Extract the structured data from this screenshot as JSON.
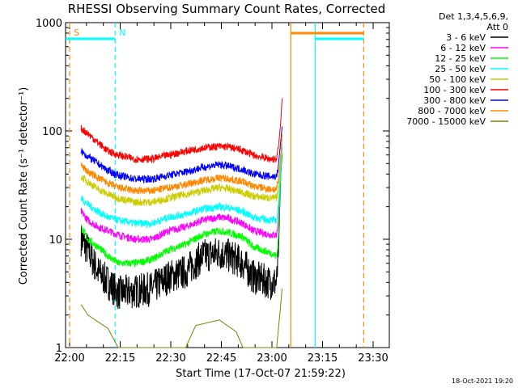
{
  "chart_data": {
    "type": "line",
    "title": "RHESSI Observing Summary Count Rates, Corrected",
    "xlabel": "Start Time (17-Oct-07 21:59:22)",
    "ylabel": "Corrected Count Rate (s⁻¹ detector⁻¹)",
    "yscale": "log",
    "ylim": [
      1,
      1000
    ],
    "xlim_minutes": [
      -0.6,
      95.4
    ],
    "x_tick_labels": [
      "22:00",
      "22:15",
      "22:30",
      "22:45",
      "23:00",
      "23:15",
      "23:30"
    ],
    "y_tick_labels": [
      "1",
      "10",
      "100",
      "1000"
    ],
    "legend_header": [
      "Det 1,3,4,5,6,9,",
      "Att 0"
    ],
    "footer": "18-Oct-2021 19:20",
    "series": [
      {
        "name": "3 - 6 keV",
        "color": "#000000",
        "points": [
          [
            4,
            10
          ],
          [
            6,
            8
          ],
          [
            9,
            5
          ],
          [
            12,
            4
          ],
          [
            15,
            3.2
          ],
          [
            20,
            3.3
          ],
          [
            25,
            3.5
          ],
          [
            30,
            4.5
          ],
          [
            35,
            5
          ],
          [
            40,
            7
          ],
          [
            45,
            7.5
          ],
          [
            48,
            7
          ],
          [
            52,
            6
          ],
          [
            55,
            4.5
          ],
          [
            60,
            4
          ],
          [
            62,
            4
          ],
          [
            62.5,
            7
          ],
          [
            63.2,
            40
          ],
          [
            63.6,
            60
          ]
        ]
      },
      {
        "name": "6 - 12 keV",
        "color": "#ff00ff",
        "points": [
          [
            4,
            18
          ],
          [
            6,
            15
          ],
          [
            9,
            13
          ],
          [
            12,
            12
          ],
          [
            15,
            11
          ],
          [
            20,
            10
          ],
          [
            25,
            10
          ],
          [
            30,
            12
          ],
          [
            35,
            13
          ],
          [
            40,
            15
          ],
          [
            45,
            16
          ],
          [
            48,
            15.5
          ],
          [
            52,
            14
          ],
          [
            55,
            12
          ],
          [
            60,
            11
          ],
          [
            62,
            11
          ],
          [
            62.5,
            15
          ],
          [
            63.2,
            45
          ],
          [
            63.6,
            70
          ]
        ]
      },
      {
        "name": "12 - 25 keV",
        "color": "#00ff00",
        "points": [
          [
            4,
            13
          ],
          [
            6,
            10
          ],
          [
            9,
            8.5
          ],
          [
            12,
            7
          ],
          [
            15,
            6
          ],
          [
            20,
            6
          ],
          [
            25,
            6.5
          ],
          [
            30,
            8
          ],
          [
            35,
            9
          ],
          [
            40,
            11
          ],
          [
            45,
            12
          ],
          [
            48,
            11.5
          ],
          [
            52,
            10.5
          ],
          [
            55,
            8.5
          ],
          [
            60,
            7.5
          ],
          [
            62,
            7
          ],
          [
            62.5,
            10
          ],
          [
            63.2,
            42
          ],
          [
            63.6,
            62
          ]
        ]
      },
      {
        "name": "25 - 50 keV",
        "color": "#00ffff",
        "points": [
          [
            4,
            24
          ],
          [
            6,
            21
          ],
          [
            9,
            18
          ],
          [
            12,
            16
          ],
          [
            15,
            15
          ],
          [
            20,
            14
          ],
          [
            25,
            14
          ],
          [
            30,
            16
          ],
          [
            35,
            17
          ],
          [
            40,
            19
          ],
          [
            45,
            20
          ],
          [
            48,
            19.5
          ],
          [
            52,
            18
          ],
          [
            55,
            16
          ],
          [
            60,
            15
          ],
          [
            62,
            15
          ],
          [
            62.5,
            20
          ],
          [
            63.2,
            48
          ],
          [
            63.6,
            75
          ]
        ]
      },
      {
        "name": "50 - 100 keV",
        "color": "#cccc00",
        "points": [
          [
            4,
            38
          ],
          [
            6,
            34
          ],
          [
            9,
            29
          ],
          [
            12,
            26
          ],
          [
            15,
            24
          ],
          [
            20,
            22
          ],
          [
            25,
            22
          ],
          [
            30,
            24
          ],
          [
            35,
            26
          ],
          [
            40,
            28
          ],
          [
            45,
            30
          ],
          [
            48,
            29
          ],
          [
            52,
            27
          ],
          [
            55,
            25
          ],
          [
            60,
            24
          ],
          [
            62,
            24
          ],
          [
            62.5,
            30
          ],
          [
            63.2,
            55
          ],
          [
            63.6,
            85
          ]
        ]
      },
      {
        "name": "100 - 300 keV",
        "color": "#ff0000",
        "points": [
          [
            4,
            105
          ],
          [
            6,
            95
          ],
          [
            9,
            78
          ],
          [
            12,
            65
          ],
          [
            15,
            60
          ],
          [
            20,
            55
          ],
          [
            25,
            55
          ],
          [
            30,
            60
          ],
          [
            35,
            65
          ],
          [
            40,
            70
          ],
          [
            45,
            72
          ],
          [
            48,
            71
          ],
          [
            52,
            66
          ],
          [
            55,
            60
          ],
          [
            60,
            55
          ],
          [
            62,
            55
          ],
          [
            62.5,
            70
          ],
          [
            63.2,
            120
          ],
          [
            63.6,
            200
          ]
        ]
      },
      {
        "name": "300 - 800 keV",
        "color": "#0000ff",
        "points": [
          [
            4,
            65
          ],
          [
            6,
            58
          ],
          [
            9,
            50
          ],
          [
            12,
            43
          ],
          [
            15,
            39
          ],
          [
            20,
            36
          ],
          [
            25,
            36
          ],
          [
            30,
            39
          ],
          [
            35,
            42
          ],
          [
            40,
            46
          ],
          [
            45,
            49
          ],
          [
            48,
            47
          ],
          [
            52,
            44
          ],
          [
            55,
            40
          ],
          [
            60,
            38
          ],
          [
            62,
            38
          ],
          [
            62.5,
            48
          ],
          [
            63.2,
            80
          ],
          [
            63.6,
            110
          ]
        ]
      },
      {
        "name": "800 - 7000 keV",
        "color": "#ff8800",
        "points": [
          [
            4,
            48
          ],
          [
            6,
            42
          ],
          [
            9,
            37
          ],
          [
            12,
            33
          ],
          [
            15,
            30
          ],
          [
            20,
            28
          ],
          [
            25,
            28
          ],
          [
            30,
            30
          ],
          [
            35,
            32
          ],
          [
            40,
            35
          ],
          [
            45,
            37
          ],
          [
            48,
            36
          ],
          [
            52,
            34
          ],
          [
            55,
            31
          ],
          [
            60,
            29
          ],
          [
            62,
            29
          ],
          [
            62.5,
            35
          ],
          [
            63.2,
            60
          ],
          [
            63.6,
            95
          ]
        ]
      },
      {
        "name": "7000 - 15000 keV",
        "color": "#808000",
        "points": [
          [
            4,
            2.5
          ],
          [
            6,
            2
          ],
          [
            12,
            1.5
          ],
          [
            15,
            1
          ],
          [
            35,
            1
          ],
          [
            38,
            1.6
          ],
          [
            45,
            1.8
          ],
          [
            50,
            1.4
          ],
          [
            52,
            1
          ],
          [
            62,
            1
          ],
          [
            63.2,
            2.5
          ],
          [
            63.6,
            3.5
          ]
        ]
      }
    ],
    "markers": [
      {
        "label": "S",
        "color": "#ff8800",
        "x_minute": 0.6,
        "style": "dashed"
      },
      {
        "label": "N",
        "color": "#00ffff",
        "x_minute": 14.1,
        "style": "dashed"
      },
      {
        "label": "",
        "color": "#ff8800",
        "x_minute": 66.2,
        "style": "solid"
      },
      {
        "label": "",
        "color": "#00ffff",
        "x_minute": 73.4,
        "style": "solid"
      },
      {
        "label": "",
        "color": "#ff8800",
        "x_minute": 87.8,
        "style": "dashed"
      }
    ]
  }
}
